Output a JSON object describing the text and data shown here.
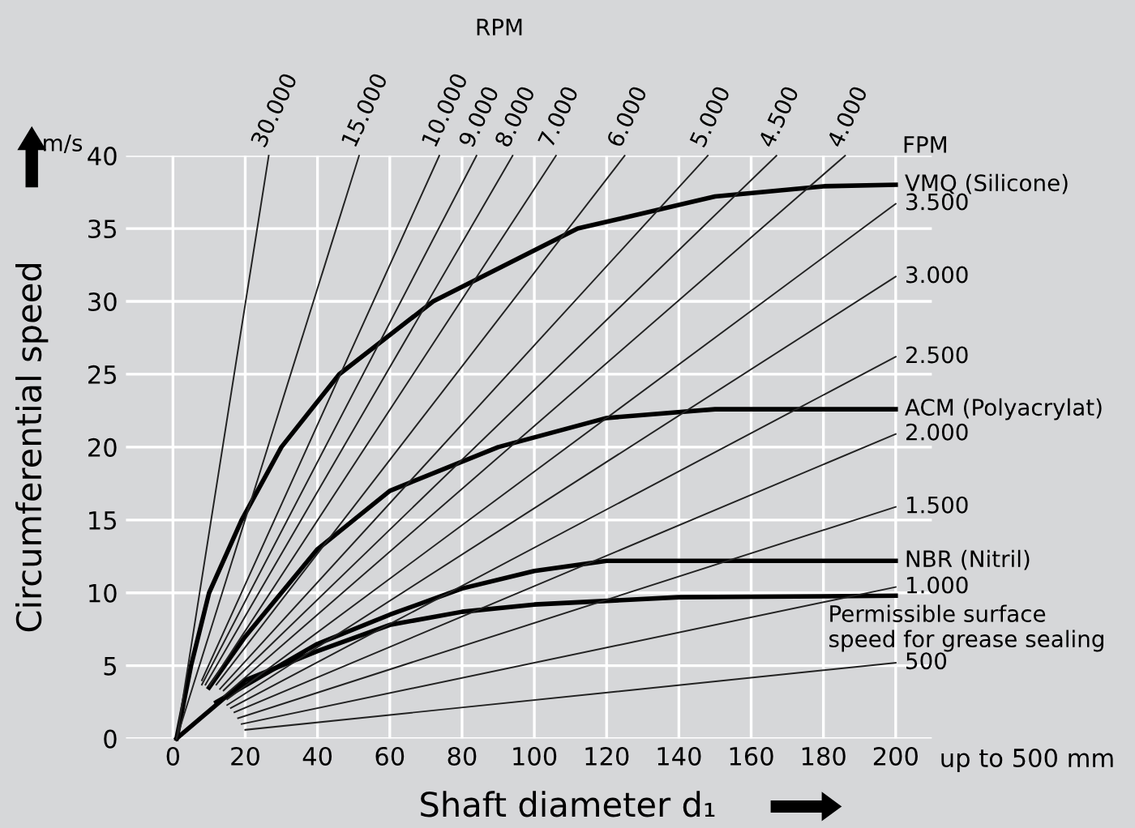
{
  "chart_data": {
    "type": "line",
    "xlabel": "Shaft diameter d₁",
    "ylabel": "Circumferential speed",
    "xlim": [
      -13,
      210
    ],
    "ylim": [
      0,
      40
    ],
    "xticks": [
      0,
      20,
      40,
      60,
      80,
      100,
      120,
      140,
      160,
      180,
      200
    ],
    "yticks": [
      0,
      5,
      10,
      15,
      20,
      25,
      30,
      35,
      40
    ],
    "grid": true,
    "legend": false,
    "marker": "none",
    "line_style": "solid",
    "annotations": [
      "RPM",
      "m/s",
      "up to 500 mm",
      "FPM"
    ],
    "series": [
      {
        "name": "VMQ (Silicone)",
        "color": "#000000",
        "x": [
          1,
          5,
          10,
          19,
          30,
          46,
          72,
          112,
          150,
          180,
          200
        ],
        "values": [
          0,
          5,
          10,
          15,
          20,
          25,
          30,
          35,
          37.2,
          37.9,
          38
        ]
      },
      {
        "name": "ACM (Polyacrylat)",
        "color": "#000000",
        "x": [
          10,
          20,
          40,
          60,
          90,
          120,
          150,
          200
        ],
        "values": [
          3.5,
          7,
          13,
          17,
          20,
          22,
          22.6,
          22.6
        ]
      },
      {
        "name": "NBR (Nitril)",
        "color": "#000000",
        "x": [
          12,
          40,
          60,
          80,
          100,
          120,
          200
        ],
        "values": [
          2.5,
          6.5,
          8.5,
          10.3,
          11.5,
          12.2,
          12.2
        ]
      },
      {
        "name": "Permissible surface\nspeed for grease sealing",
        "color": "#000000",
        "x": [
          1,
          20,
          40,
          60,
          80,
          100,
          140,
          200
        ],
        "values": [
          0,
          4,
          6,
          7.8,
          8.7,
          9.2,
          9.7,
          9.8
        ]
      },
      {
        "name": "30.000",
        "color": "#222222",
        "x": [
          1,
          26.5
        ],
        "values": [
          0,
          40
        ]
      },
      {
        "name": "15.000",
        "color": "#222222",
        "x": [
          1,
          51.5
        ],
        "values": [
          0,
          40
        ]
      },
      {
        "name": "10.000",
        "color": "#222222",
        "x": [
          8,
          73.7
        ],
        "values": [
          4,
          40
        ]
      },
      {
        "name": "9.000",
        "color": "#222222",
        "x": [
          8,
          84
        ],
        "values": [
          3.7,
          40
        ]
      },
      {
        "name": "8.000",
        "color": "#222222",
        "x": [
          9,
          94
        ],
        "values": [
          3.7,
          40
        ]
      },
      {
        "name": "7.000",
        "color": "#222222",
        "x": [
          10,
          106
        ],
        "values": [
          3.6,
          40
        ]
      },
      {
        "name": "6.000",
        "color": "#222222",
        "x": [
          12,
          125
        ],
        "values": [
          3.7,
          40
        ]
      },
      {
        "name": "5.000",
        "color": "#222222",
        "x": [
          13,
          148
        ],
        "values": [
          3.4,
          40
        ]
      },
      {
        "name": "4.500",
        "color": "#222222",
        "x": [
          14,
          167
        ],
        "values": [
          3.3,
          40
        ]
      },
      {
        "name": "4.000",
        "color": "#222222",
        "x": [
          14,
          186
        ],
        "values": [
          2.9,
          40
        ]
      },
      {
        "name": "3.500",
        "color": "#222222",
        "x": [
          15,
          200
        ],
        "values": [
          2.7,
          36.7
        ]
      },
      {
        "name": "3.000",
        "color": "#222222",
        "x": [
          15,
          200
        ],
        "values": [
          2.3,
          31.7
        ]
      },
      {
        "name": "2.500",
        "color": "#222222",
        "x": [
          16,
          200
        ],
        "values": [
          2.1,
          26.2
        ]
      },
      {
        "name": "2.000",
        "color": "#222222",
        "x": [
          17,
          200
        ],
        "values": [
          1.8,
          20.9
        ]
      },
      {
        "name": "1.500",
        "color": "#222222",
        "x": [
          18,
          200
        ],
        "values": [
          1.4,
          15.9
        ]
      },
      {
        "name": "1.000",
        "color": "#222222",
        "x": [
          19,
          200
        ],
        "values": [
          1.0,
          10.4
        ]
      },
      {
        "name": "500",
        "color": "#222222",
        "x": [
          20,
          200
        ],
        "values": [
          0.6,
          5.2
        ]
      }
    ]
  }
}
